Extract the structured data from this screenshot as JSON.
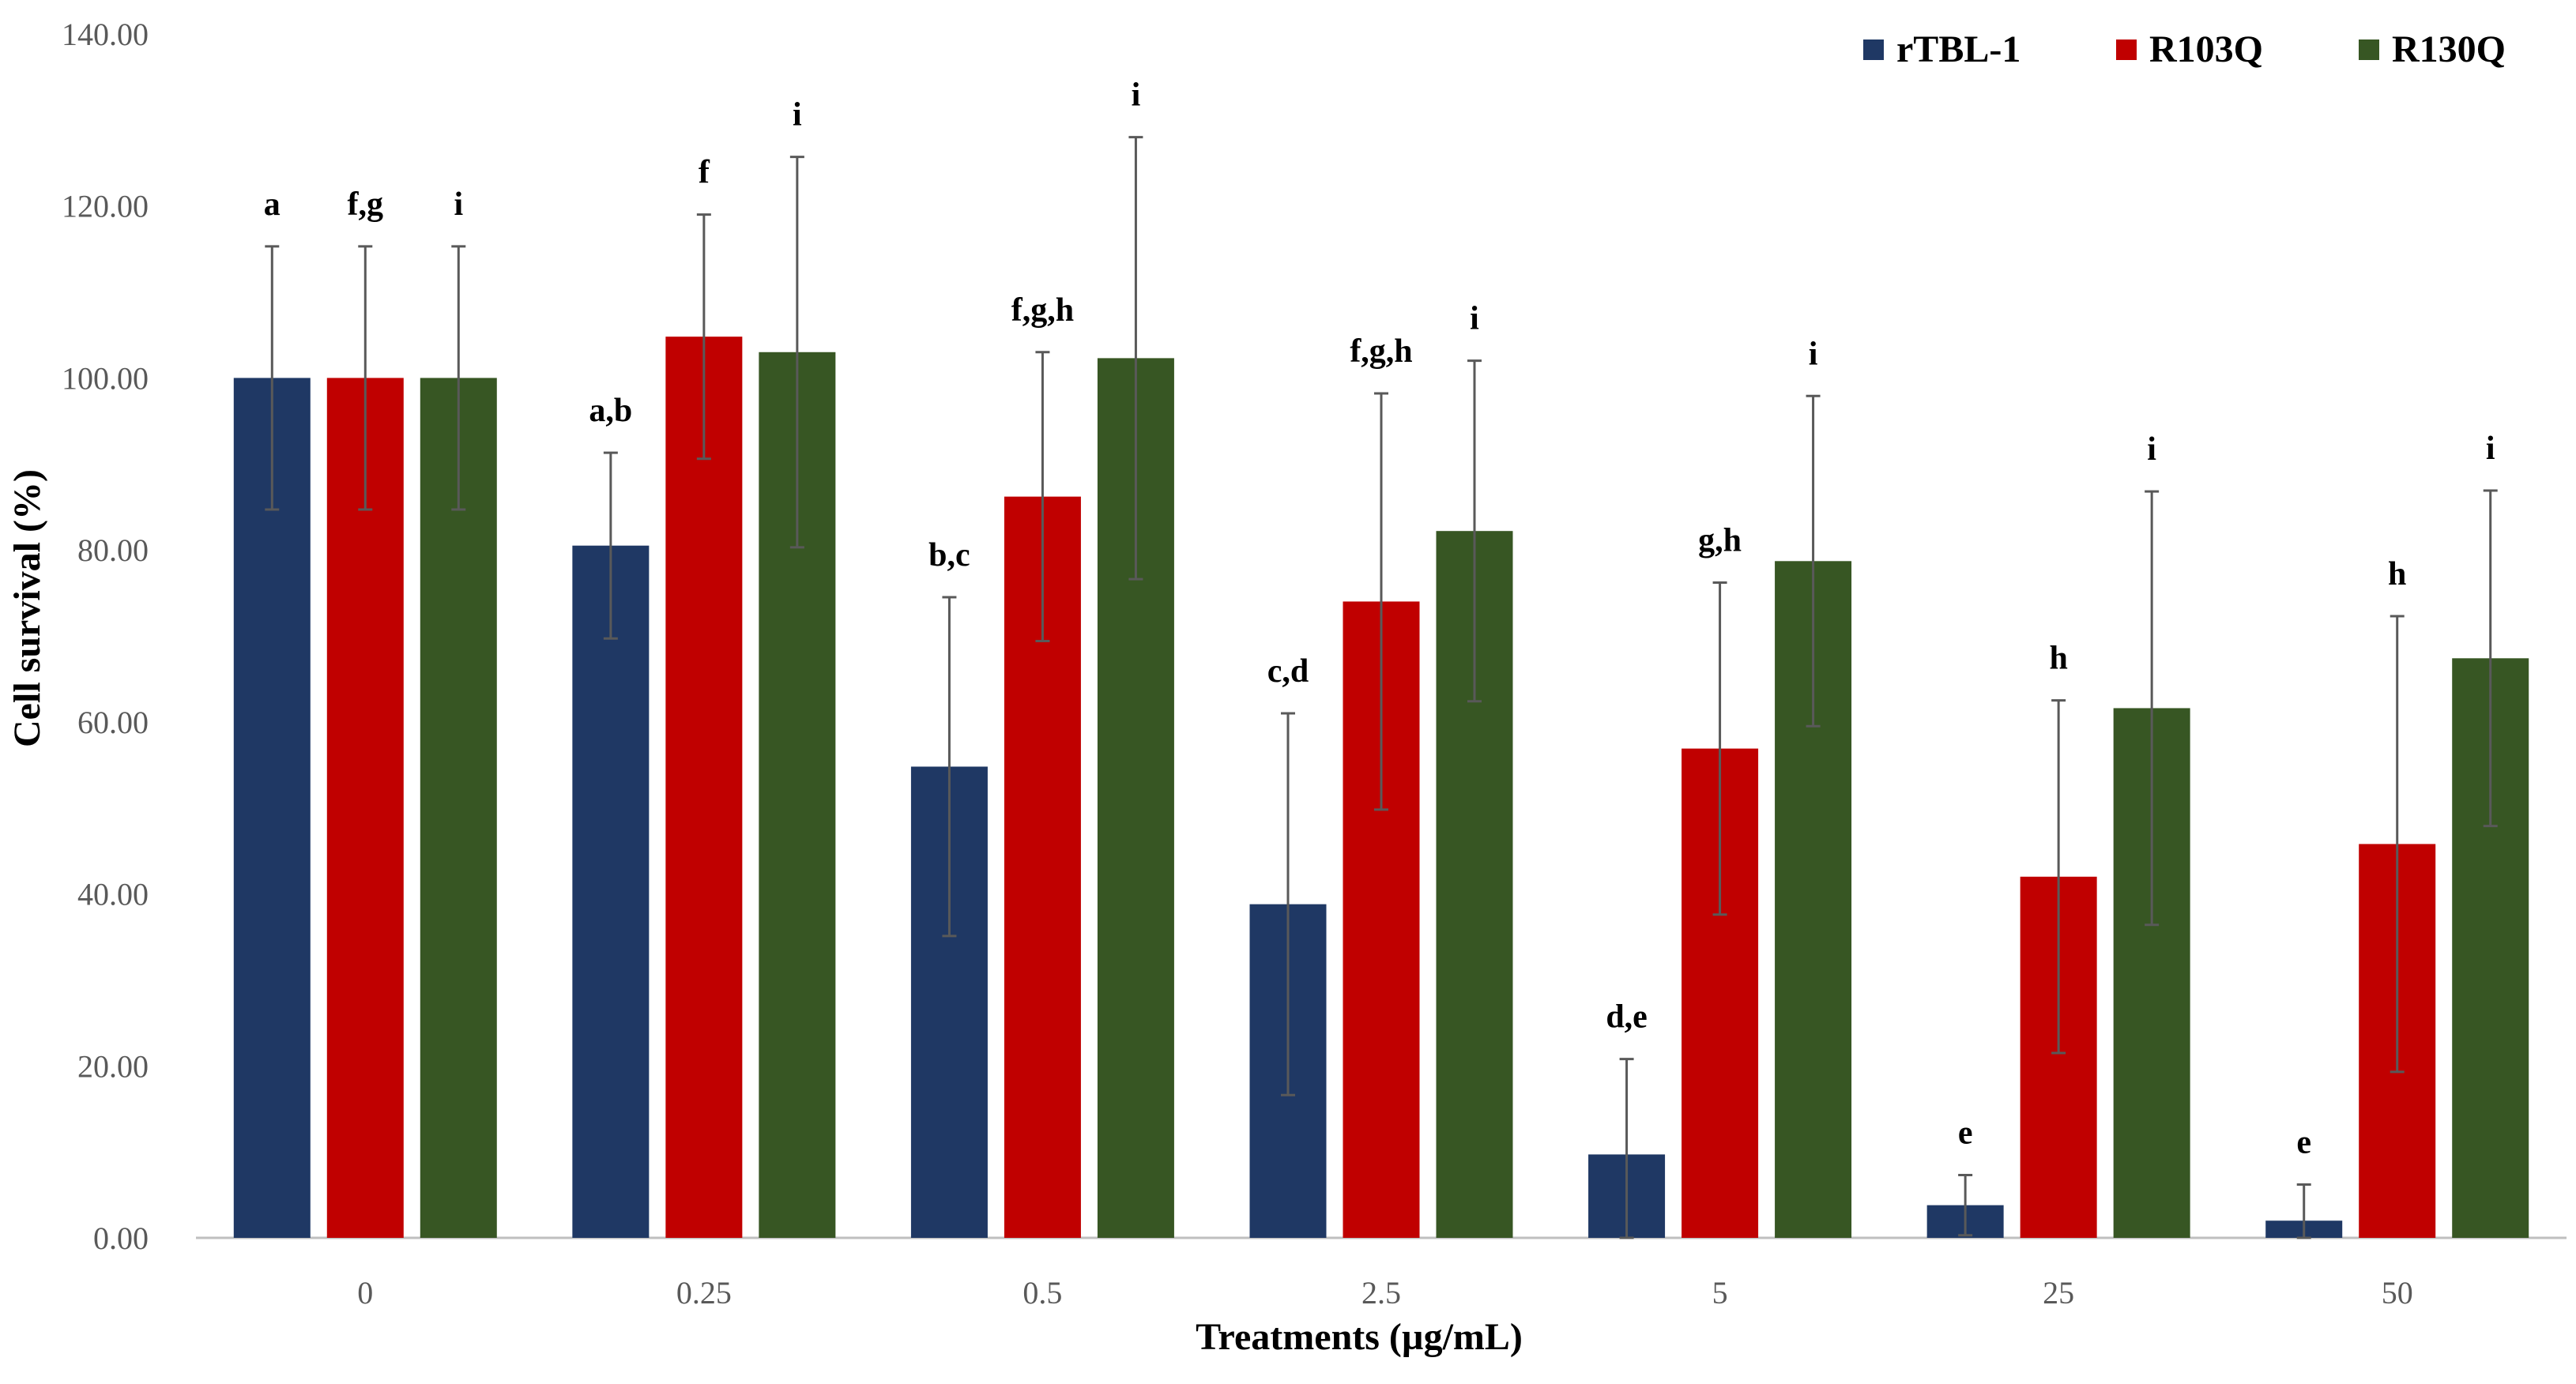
{
  "chart_data": {
    "type": "bar",
    "title": "",
    "xlabel": "Treatments (µg/mL)",
    "ylabel": "Cell survival (%)",
    "ylim": [
      0,
      140
    ],
    "yticks": [
      "0.00",
      "20.00",
      "40.00",
      "60.00",
      "80.00",
      "100.00",
      "120.00",
      "140.00"
    ],
    "ytick_values": [
      0,
      20,
      40,
      60,
      80,
      100,
      120,
      140
    ],
    "categories": [
      "0",
      "0.25",
      "0.5",
      "2.5",
      "5",
      "25",
      "50"
    ],
    "grid": false,
    "legend_position": "top-right",
    "series": [
      {
        "name": "rTBL-1",
        "color": "#1F3864",
        "values": [
          100,
          80.5,
          54.8,
          38.8,
          9.7,
          3.8,
          2.0
        ],
        "errors": [
          15.3,
          10.8,
          19.7,
          22.2,
          11.1,
          3.5,
          4.2
        ],
        "letters": [
          "a",
          "a,b",
          "b,c",
          "c,d",
          "d,e",
          "e",
          "e"
        ]
      },
      {
        "name": "R103Q",
        "color": "#C00000",
        "values": [
          100,
          104.8,
          86.2,
          74.0,
          56.9,
          42.0,
          45.8
        ],
        "errors": [
          15.3,
          14.2,
          16.8,
          24.2,
          19.3,
          20.5,
          26.5
        ],
        "letters": [
          "f,g",
          "f",
          "f,g,h",
          "f,g,h",
          "g,h",
          "h",
          "h"
        ]
      },
      {
        "name": "R130Q",
        "color": "#375623",
        "values": [
          100,
          103.0,
          102.3,
          82.2,
          78.7,
          61.6,
          67.4
        ],
        "errors": [
          15.3,
          22.7,
          25.7,
          19.8,
          19.2,
          25.2,
          19.5
        ],
        "letters": [
          "i",
          "i",
          "i",
          "i",
          "i",
          "i",
          "i"
        ]
      }
    ]
  }
}
